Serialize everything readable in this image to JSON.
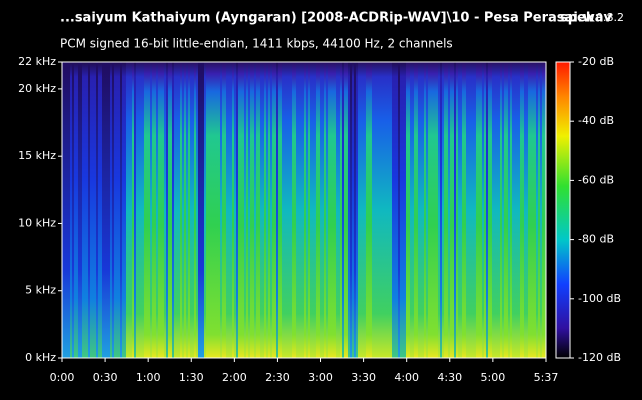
{
  "chart_data": {
    "type": "spectrogram",
    "title": "...saiyum Kathaiyum (Ayngaran) [2008-ACDRip-WAV]\\10 - Pesa Perasai.wav",
    "app_name": "spek",
    "app_version": "0.8.2",
    "subtitle": "PCM signed 16-bit little-endian, 1411 kbps, 44100 Hz, 2 channels",
    "xlim": [
      0,
      337
    ],
    "xticks": [
      {
        "value": 0,
        "label": "0:00"
      },
      {
        "value": 30,
        "label": "0:30"
      },
      {
        "value": 60,
        "label": "1:00"
      },
      {
        "value": 90,
        "label": "1:30"
      },
      {
        "value": 120,
        "label": "2:00"
      },
      {
        "value": 150,
        "label": "2:30"
      },
      {
        "value": 180,
        "label": "3:00"
      },
      {
        "value": 210,
        "label": "3:30"
      },
      {
        "value": 240,
        "label": "4:00"
      },
      {
        "value": 270,
        "label": "4:30"
      },
      {
        "value": 300,
        "label": "5:00"
      },
      {
        "value": 337,
        "label": "5:37"
      }
    ],
    "ylim": [
      0,
      22
    ],
    "yticks": [
      {
        "value": 0,
        "label": "0 kHz"
      },
      {
        "value": 5,
        "label": "5 kHz"
      },
      {
        "value": 10,
        "label": "10 kHz"
      },
      {
        "value": 15,
        "label": "15 kHz"
      },
      {
        "value": 20,
        "label": "20 kHz"
      },
      {
        "value": 22,
        "label": "22 kHz"
      }
    ],
    "zlim": [
      -120,
      -20
    ],
    "zticks": [
      {
        "value": -20,
        "label": "-20 dB"
      },
      {
        "value": -40,
        "label": "-40 dB"
      },
      {
        "value": -60,
        "label": "-60 dB"
      },
      {
        "value": -80,
        "label": "-80 dB"
      },
      {
        "value": -100,
        "label": "-100 dB"
      },
      {
        "value": -120,
        "label": "-120 dB"
      }
    ]
  }
}
